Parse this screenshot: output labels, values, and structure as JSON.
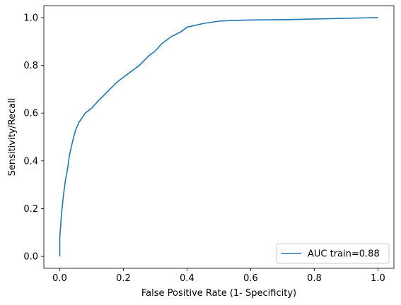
{
  "chart_data": {
    "type": "line",
    "title": "",
    "xlabel": "False Positive Rate (1- Specificity)",
    "ylabel": "Sensitivity/Recall",
    "xlim": [
      -0.05,
      1.05
    ],
    "ylim": [
      -0.05,
      1.05
    ],
    "xticks": [
      0.0,
      0.2,
      0.4,
      0.6,
      0.8,
      1.0
    ],
    "xtick_labels": [
      "0.0",
      "0.2",
      "0.4",
      "0.6",
      "0.8",
      "1.0"
    ],
    "yticks": [
      0.0,
      0.2,
      0.4,
      0.6,
      0.8,
      1.0
    ],
    "ytick_labels": [
      "0.0",
      "0.2",
      "0.4",
      "0.6",
      "0.8",
      "1.0"
    ],
    "grid": false,
    "legend_position": "lower-right",
    "series": [
      {
        "name": "AUC train=0.88",
        "color": "#1f77b4",
        "x": [
          0.0,
          0.0,
          0.003,
          0.005,
          0.008,
          0.012,
          0.018,
          0.025,
          0.03,
          0.04,
          0.05,
          0.06,
          0.07,
          0.08,
          0.1,
          0.12,
          0.15,
          0.18,
          0.2,
          0.22,
          0.25,
          0.28,
          0.3,
          0.32,
          0.35,
          0.38,
          0.4,
          0.45,
          0.5,
          0.55,
          0.6,
          0.7,
          0.8,
          0.9,
          1.0
        ],
        "y": [
          0.0,
          0.08,
          0.13,
          0.17,
          0.21,
          0.26,
          0.32,
          0.37,
          0.42,
          0.48,
          0.53,
          0.56,
          0.58,
          0.6,
          0.62,
          0.65,
          0.69,
          0.73,
          0.75,
          0.77,
          0.8,
          0.84,
          0.86,
          0.89,
          0.92,
          0.94,
          0.96,
          0.975,
          0.985,
          0.988,
          0.99,
          0.991,
          0.994,
          0.997,
          1.0
        ]
      }
    ]
  }
}
